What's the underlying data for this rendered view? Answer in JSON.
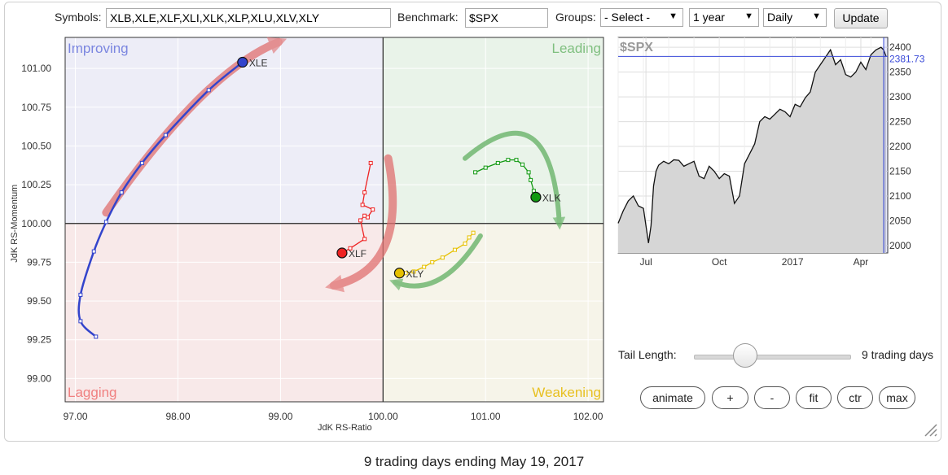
{
  "toolbar": {
    "symbols_label": "Symbols:",
    "symbols_value": "XLB,XLE,XLF,XLI,XLK,XLP,XLU,XLV,XLY",
    "benchmark_label": "Benchmark:",
    "benchmark_value": "$SPX",
    "groups_label": "Groups:",
    "groups_selected": "- Select -",
    "period_selected": "1 year",
    "interval_selected": "Daily",
    "update_label": "Update"
  },
  "controls": {
    "tail_length_label": "Tail Length:",
    "tail_length_value": "9 trading days",
    "tail_length_level": 0.33,
    "buttons": [
      "animate",
      "+",
      "-",
      "fit",
      "ctr",
      "max"
    ]
  },
  "footer_text": "9 trading days ending May 19, 2017",
  "chart_data": [
    {
      "type": "scatter",
      "subtype": "relative-rotation-graph",
      "xlabel": "JdK RS-Ratio",
      "ylabel": "JdK RS-Momentum",
      "xlim": [
        96.9,
        102.15
      ],
      "ylim": [
        98.85,
        101.2
      ],
      "x_ticks": [
        97.0,
        98.0,
        99.0,
        100.0,
        101.0,
        102.0
      ],
      "x_tick_labels": [
        "97.00",
        "98.00",
        "99.00",
        "100.00",
        "101.00",
        "102.00"
      ],
      "y_ticks": [
        99.0,
        99.25,
        99.5,
        99.75,
        100.0,
        100.25,
        100.5,
        100.75,
        101.0
      ],
      "y_tick_labels": [
        "99.00",
        "99.25",
        "99.50",
        "99.75",
        "100.00",
        "100.25",
        "100.50",
        "100.75",
        "101.00"
      ],
      "center": [
        100.0,
        100.0
      ],
      "quadrants": [
        {
          "label": "Improving",
          "color": "#7b86e0",
          "bg": "#ededf7"
        },
        {
          "label": "Leading",
          "color": "#7fbf7f",
          "bg": "#e9f3e9"
        },
        {
          "label": "Lagging",
          "color": "#f08080",
          "bg": "#f8e9e9"
        },
        {
          "label": "Weakening",
          "color": "#e8c020",
          "bg": "#f6f4e9"
        }
      ],
      "series": [
        {
          "name": "XLE",
          "color": "#3344cc",
          "smooth": true,
          "points": [
            [
              97.2,
              99.27
            ],
            [
              97.05,
              99.37
            ],
            [
              97.05,
              99.54
            ],
            [
              97.18,
              99.82
            ],
            [
              97.3,
              100.01
            ],
            [
              97.45,
              100.2
            ],
            [
              97.65,
              100.39
            ],
            [
              97.88,
              100.57
            ],
            [
              98.3,
              100.86
            ],
            [
              98.63,
              101.04
            ]
          ]
        },
        {
          "name": "XLF",
          "color": "#ee2222",
          "smooth": false,
          "points": [
            [
              99.88,
              100.39
            ],
            [
              99.82,
              100.2
            ],
            [
              99.8,
              100.12
            ],
            [
              99.9,
              100.09
            ],
            [
              99.85,
              100.04
            ],
            [
              99.82,
              100.05
            ],
            [
              99.78,
              100.02
            ],
            [
              99.82,
              99.9
            ],
            [
              99.68,
              99.84
            ],
            [
              99.6,
              99.81
            ]
          ]
        },
        {
          "name": "XLK",
          "color": "#119911",
          "smooth": false,
          "points": [
            [
              100.9,
              100.33
            ],
            [
              101.0,
              100.36
            ],
            [
              101.12,
              100.39
            ],
            [
              101.22,
              100.41
            ],
            [
              101.3,
              100.41
            ],
            [
              101.36,
              100.38
            ],
            [
              101.42,
              100.33
            ],
            [
              101.44,
              100.28
            ],
            [
              101.47,
              100.21
            ],
            [
              101.49,
              100.17
            ]
          ]
        },
        {
          "name": "XLY",
          "color": "#e6c000",
          "smooth": false,
          "points": [
            [
              100.88,
              99.94
            ],
            [
              100.84,
              99.91
            ],
            [
              100.8,
              99.87
            ],
            [
              100.7,
              99.83
            ],
            [
              100.58,
              99.78
            ],
            [
              100.48,
              99.75
            ],
            [
              100.4,
              99.72
            ],
            [
              100.3,
              99.69
            ],
            [
              100.22,
              99.68
            ],
            [
              100.16,
              99.68
            ]
          ]
        }
      ],
      "annotations": [
        {
          "type": "arrow",
          "color": "#e07070",
          "path": [
            [
              97.3,
              100.07
            ],
            [
              98.2,
              100.8
            ],
            [
              98.98,
              101.17
            ]
          ]
        },
        {
          "type": "arrow",
          "color": "#e07070",
          "path": [
            [
              100.05,
              100.42
            ],
            [
              100.02,
              99.86
            ],
            [
              99.52,
              99.6
            ]
          ]
        },
        {
          "type": "arrow",
          "color": "#6ab46a",
          "path": [
            [
              100.8,
              100.42
            ],
            [
              101.45,
              100.55
            ],
            [
              101.72,
              100.0
            ]
          ]
        },
        {
          "type": "arrow",
          "color": "#6ab46a",
          "path": [
            [
              100.95,
              99.92
            ],
            [
              100.55,
              99.64
            ],
            [
              100.12,
              99.62
            ]
          ]
        }
      ]
    },
    {
      "type": "line",
      "title": "$SPX",
      "x_tick_labels": [
        "Jul",
        "Oct",
        "2017",
        "Apr"
      ],
      "x_tick_positions": [
        1.1,
        4.0,
        6.9,
        9.6
      ],
      "ylim": [
        1985,
        2420
      ],
      "y_ticks": [
        2000,
        2050,
        2100,
        2150,
        2200,
        2250,
        2300,
        2350,
        2400
      ],
      "last_value": "2381.73",
      "last_value_num": 2381.73,
      "line_color": "#111111",
      "fill_color": "#d6d6d6",
      "x": [
        0.0,
        0.2,
        0.4,
        0.6,
        0.8,
        1.0,
        1.2,
        1.3,
        1.4,
        1.5,
        1.6,
        1.8,
        2.0,
        2.2,
        2.4,
        2.6,
        2.8,
        3.0,
        3.2,
        3.4,
        3.6,
        3.8,
        4.0,
        4.2,
        4.4,
        4.6,
        4.8,
        5.0,
        5.2,
        5.4,
        5.6,
        5.8,
        6.0,
        6.2,
        6.4,
        6.6,
        6.8,
        7.0,
        7.2,
        7.4,
        7.6,
        7.8,
        8.0,
        8.2,
        8.4,
        8.6,
        8.8,
        9.0,
        9.2,
        9.4,
        9.6,
        9.8,
        10.0,
        10.2,
        10.4,
        10.5,
        10.6
      ],
      "values": [
        2045,
        2070,
        2090,
        2100,
        2080,
        2075,
        2005,
        2040,
        2120,
        2150,
        2162,
        2170,
        2165,
        2173,
        2172,
        2160,
        2165,
        2170,
        2140,
        2135,
        2160,
        2150,
        2135,
        2145,
        2140,
        2085,
        2100,
        2165,
        2185,
        2205,
        2250,
        2260,
        2255,
        2265,
        2275,
        2270,
        2260,
        2285,
        2280,
        2298,
        2310,
        2350,
        2365,
        2380,
        2395,
        2365,
        2375,
        2345,
        2340,
        2350,
        2370,
        2355,
        2385,
        2395,
        2400,
        2395,
        2381.73
      ]
    }
  ]
}
